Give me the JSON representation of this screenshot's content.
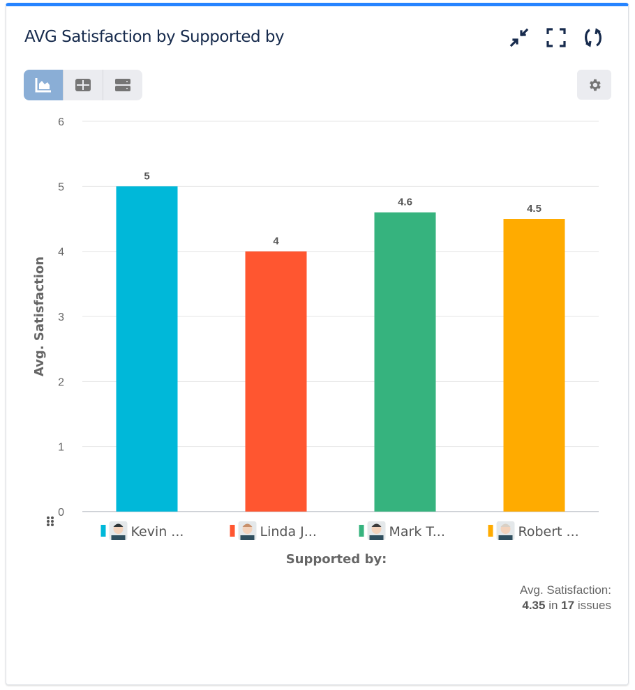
{
  "header": {
    "title": "AVG Satisfaction by Supported by"
  },
  "icons": {
    "collapse": "collapse-arrows-icon",
    "fullscreen": "fullscreen-icon",
    "refresh": "refresh-icon",
    "settings": "gear-icon"
  },
  "view_toggle": [
    {
      "name": "chart-view",
      "active": true
    },
    {
      "name": "table-view",
      "active": false
    },
    {
      "name": "list-view",
      "active": false
    }
  ],
  "chart_data": {
    "type": "bar",
    "title": "",
    "xlabel": "Supported by:",
    "ylabel": "Avg. Satisfaction",
    "ylim": [
      0,
      6
    ],
    "yticks": [
      "0",
      "1",
      "2",
      "3",
      "4",
      "5",
      "6"
    ],
    "grid": true,
    "categories": [
      "Kevin ...",
      "Linda J...",
      "Mark T...",
      "Robert ..."
    ],
    "values": [
      5,
      4,
      4.6,
      4.5
    ],
    "data_labels": [
      "5",
      "4",
      "4.6",
      "4.5"
    ],
    "colors": [
      "#00b8d9",
      "#ff5630",
      "#36b37e",
      "#ffab00"
    ]
  },
  "footer": {
    "label": "Avg. Satisfaction:",
    "value": "4.35",
    "in": "in",
    "count": "17",
    "unit": "issues"
  }
}
